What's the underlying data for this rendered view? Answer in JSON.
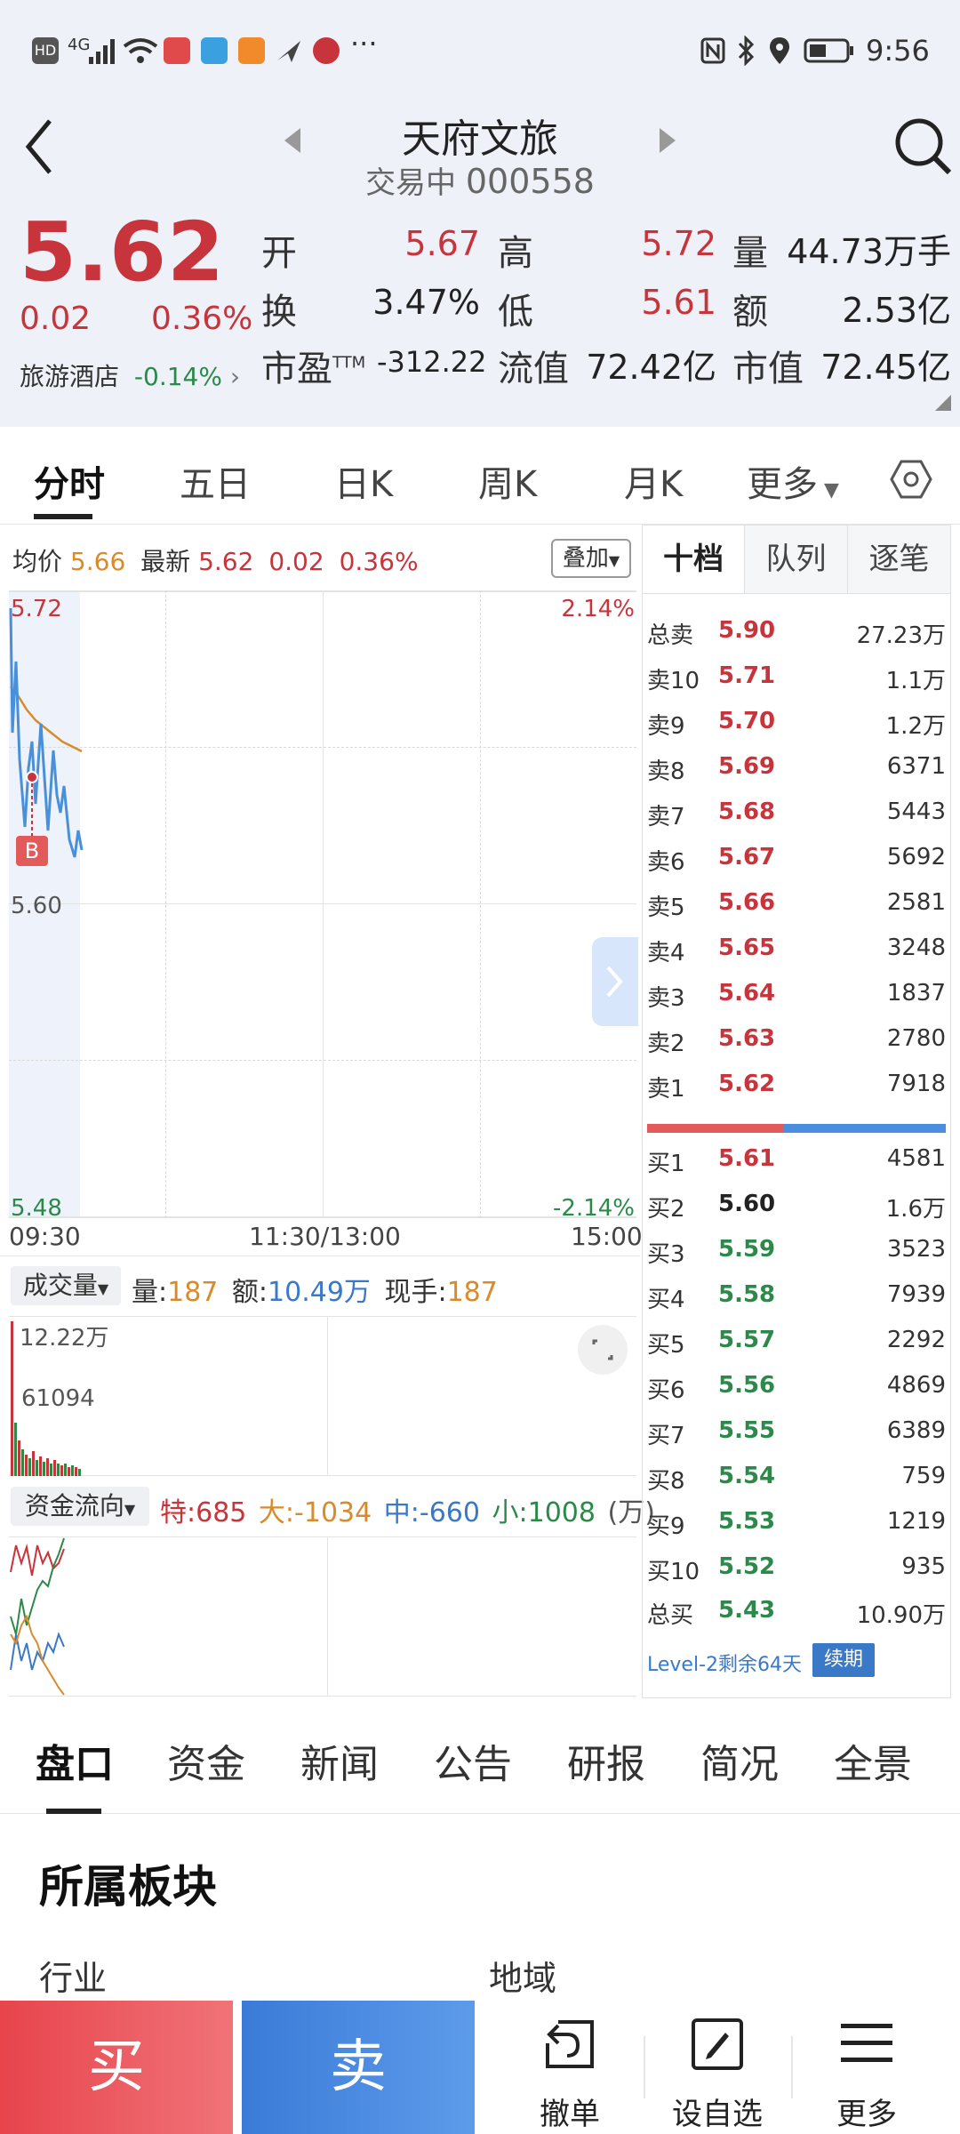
{
  "status_bar": {
    "time": "9:56",
    "network": "4G"
  },
  "header": {
    "title": "天府文旅",
    "status": "交易中",
    "code": "000558"
  },
  "quote": {
    "price": "5.62",
    "change": "0.02",
    "change_pct": "0.36%",
    "sector_name": "旅游酒店",
    "sector_change": "-0.14%",
    "open_label": "开",
    "open": "5.67",
    "high_label": "高",
    "high": "5.72",
    "volume_label": "量",
    "volume": "44.73万手",
    "turnover_label": "换",
    "turnover": "3.47%",
    "low_label": "低",
    "low": "5.61",
    "amount_label": "额",
    "amount": "2.53亿",
    "pe_label": "市盈",
    "pe_sup": "TTM",
    "pe": "-312.22",
    "float_cap_label": "流值",
    "float_cap": "72.42亿",
    "market_cap_label": "市值",
    "market_cap": "72.45亿"
  },
  "period_tabs": [
    "分时",
    "五日",
    "日K",
    "周K",
    "月K",
    "更多"
  ],
  "chart_info": {
    "avg_label": "均价",
    "avg": "5.66",
    "latest_label": "最新",
    "latest": "5.62",
    "change": "0.02",
    "change_pct": "0.36%",
    "overlay_btn": "叠加",
    "y_top": "5.72",
    "y_mid": "5.60",
    "y_bot": "5.48",
    "pct_top": "2.14%",
    "pct_bot": "-2.14%",
    "t_start": "09:30",
    "t_mid": "11:30/13:00",
    "t_end": "15:00",
    "marker": "B"
  },
  "volume_panel": {
    "selector": "成交量",
    "vol_label": "量:",
    "vol": "187",
    "amt_label": "额:",
    "amt": "10.49万",
    "hand_label": "现手:",
    "hand": "187",
    "max": "12.22万",
    "mid": "61094"
  },
  "flow_panel": {
    "selector": "资金流向",
    "super_label": "特:",
    "super": "685",
    "large_label": "大:",
    "large": "-1034",
    "medium_label": "中:",
    "medium": "-660",
    "small_label": "小:",
    "small": "1008",
    "unit": "(万)"
  },
  "order_book": {
    "tabs": [
      "十档",
      "队列",
      "逐笔"
    ],
    "total_sell": {
      "name": "总卖",
      "price": "5.90",
      "vol": "27.23万"
    },
    "asks": [
      {
        "name": "卖10",
        "price": "5.71",
        "vol": "1.1万"
      },
      {
        "name": "卖9",
        "price": "5.70",
        "vol": "1.2万"
      },
      {
        "name": "卖8",
        "price": "5.69",
        "vol": "6371"
      },
      {
        "name": "卖7",
        "price": "5.68",
        "vol": "5443"
      },
      {
        "name": "卖6",
        "price": "5.67",
        "vol": "5692"
      },
      {
        "name": "卖5",
        "price": "5.66",
        "vol": "2581"
      },
      {
        "name": "卖4",
        "price": "5.65",
        "vol": "3248"
      },
      {
        "name": "卖3",
        "price": "5.64",
        "vol": "1837"
      },
      {
        "name": "卖2",
        "price": "5.63",
        "vol": "2780"
      },
      {
        "name": "卖1",
        "price": "5.62",
        "vol": "7918"
      }
    ],
    "bids": [
      {
        "name": "买1",
        "price": "5.61",
        "vol": "4581"
      },
      {
        "name": "买2",
        "price": "5.60",
        "vol": "1.6万"
      },
      {
        "name": "买3",
        "price": "5.59",
        "vol": "3523"
      },
      {
        "name": "买4",
        "price": "5.58",
        "vol": "7939"
      },
      {
        "name": "买5",
        "price": "5.57",
        "vol": "2292"
      },
      {
        "name": "买6",
        "price": "5.56",
        "vol": "4869"
      },
      {
        "name": "买7",
        "price": "5.55",
        "vol": "6389"
      },
      {
        "name": "买8",
        "price": "5.54",
        "vol": "759"
      },
      {
        "name": "买9",
        "price": "5.53",
        "vol": "1219"
      },
      {
        "name": "买10",
        "price": "5.52",
        "vol": "935"
      }
    ],
    "total_buy": {
      "name": "总买",
      "price": "5.43",
      "vol": "10.90万"
    },
    "level2_text": "Level-2剩余64天",
    "renew_btn": "续期"
  },
  "bottom_tabs": [
    "盘口",
    "资金",
    "新闻",
    "公告",
    "研报",
    "简况",
    "全景"
  ],
  "section": {
    "title": "所属板块",
    "industry_label": "行业",
    "region_label": "地域"
  },
  "action_bar": {
    "buy": "买",
    "sell": "卖",
    "cancel": "撤单",
    "add_watch": "设自选",
    "more": "更多"
  },
  "colors": {
    "up": "#c8343b",
    "down": "#2b8a4a",
    "avg_line": "#d98a2b",
    "price_line": "#4a90d9"
  }
}
